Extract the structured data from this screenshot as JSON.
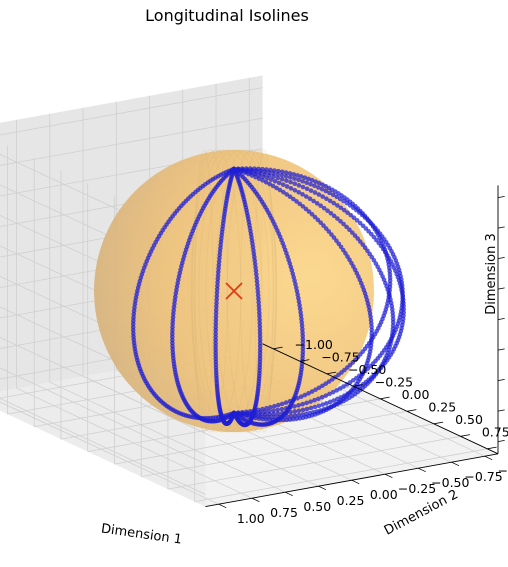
{
  "chart_data": {
    "type": "scatter",
    "projection": "3d",
    "title": "Longitudinal Isolines",
    "xlabel": "Dimension 1",
    "ylabel": "Dimension 2",
    "zlabel": "Dimension 3",
    "xlim": [
      -1.1,
      1.1
    ],
    "ylim": [
      -1.1,
      1.1
    ],
    "zlim": [
      -1.1,
      1.1
    ],
    "x_ticks": [
      "1.00",
      "0.75",
      "0.50",
      "0.25",
      "0.00",
      "−0.25",
      "−0.50",
      "−0.75",
      "−1.00"
    ],
    "y_ticks": [
      "1.00",
      "0.75",
      "0.50",
      "0.25",
      "0.00",
      "−0.25",
      "−0.50",
      "−0.75",
      "−1.00"
    ],
    "z_ticks": [
      "−1.00",
      "−0.75",
      "−0.50",
      "−0.25",
      "0.00",
      "0.25",
      "0.50",
      "0.75",
      "1.00"
    ],
    "grid": true,
    "surface": {
      "shape": "unit sphere",
      "center": [
        0,
        0,
        0
      ],
      "radius": 1.0,
      "color": "#f5c069"
    },
    "series": [
      {
        "type": "scatter",
        "color": "#1f1fd6",
        "marker": "dot",
        "isolines": [
          {
            "longitude_deg": 15
          },
          {
            "longitude_deg": 30
          },
          {
            "longitude_deg": 45
          },
          {
            "longitude_deg": 60
          },
          {
            "longitude_deg": 75
          },
          {
            "longitude_deg": 105
          },
          {
            "longitude_deg": 120
          },
          {
            "longitude_deg": 135
          },
          {
            "longitude_deg": 150
          },
          {
            "longitude_deg": 165
          }
        ]
      },
      {
        "type": "scatter",
        "marker": "x",
        "color": "#e23b14",
        "points": [
          [
            0,
            0,
            0
          ]
        ]
      }
    ]
  }
}
